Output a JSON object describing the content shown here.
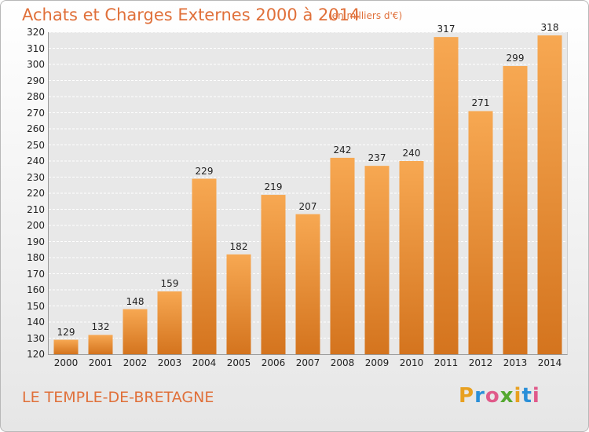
{
  "header": {
    "title": "Achats et Charges Externes 2000 à 2014",
    "subtitle": "(en milliers d'€)"
  },
  "footer": {
    "commune": "LE TEMPLE-DE-BRETAGNE",
    "logo_text": "Proxiti"
  },
  "colors": {
    "bar_light": "#f7a852",
    "bar_dark": "#d4741e",
    "title": "#e0703a",
    "plot_bg": "#e8e8e8",
    "grid": "#ffffff"
  },
  "chart_data": {
    "type": "bar",
    "title": "Achats et Charges Externes 2000 à 2014",
    "subtitle": "(en milliers d'€)",
    "xlabel": "",
    "ylabel": "",
    "categories": [
      "2000",
      "2001",
      "2002",
      "2003",
      "2004",
      "2005",
      "2006",
      "2007",
      "2008",
      "2009",
      "2010",
      "2011",
      "2012",
      "2013",
      "2014"
    ],
    "values": [
      129,
      132,
      148,
      159,
      229,
      182,
      219,
      207,
      242,
      237,
      240,
      317,
      271,
      299,
      318
    ],
    "ylim": [
      120,
      320
    ],
    "yticks": [
      120,
      130,
      140,
      150,
      160,
      170,
      180,
      190,
      200,
      210,
      220,
      230,
      240,
      250,
      260,
      270,
      280,
      290,
      300,
      310,
      320
    ],
    "grid": "horizontal dashed",
    "legend": "none",
    "data_labels": true
  }
}
